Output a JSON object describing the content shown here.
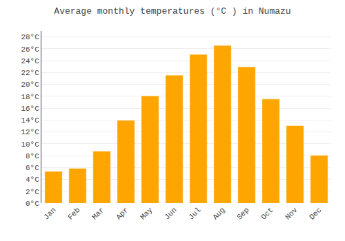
{
  "chart_data": {
    "type": "bar",
    "title": "Average monthly temperatures (°C ) in Numazu",
    "categories": [
      "Jan",
      "Feb",
      "Mar",
      "Apr",
      "May",
      "Jun",
      "Jul",
      "Aug",
      "Sep",
      "Oct",
      "Nov",
      "Dec"
    ],
    "values": [
      5.3,
      5.8,
      8.7,
      13.9,
      18.0,
      21.5,
      25.0,
      26.5,
      22.9,
      17.5,
      13.0,
      8.0
    ],
    "color": "#FFA500",
    "ylim": [
      0,
      29
    ],
    "yticks": [
      {
        "value": 0,
        "label": "0°C"
      },
      {
        "value": 2,
        "label": "2°C"
      },
      {
        "value": 4,
        "label": "4°C"
      },
      {
        "value": 6,
        "label": "6°C"
      },
      {
        "value": 8,
        "label": "8°C"
      },
      {
        "value": 10,
        "label": "10°C"
      },
      {
        "value": 12,
        "label": "12°C"
      },
      {
        "value": 14,
        "label": "14°C"
      },
      {
        "value": 16,
        "label": "16°C"
      },
      {
        "value": 18,
        "label": "18°C"
      },
      {
        "value": 20,
        "label": "20°C"
      },
      {
        "value": 22,
        "label": "22°C"
      },
      {
        "value": 24,
        "label": "24°C"
      },
      {
        "value": 26,
        "label": "26°C"
      },
      {
        "value": 28,
        "label": "28°C"
      }
    ],
    "grid": true
  }
}
